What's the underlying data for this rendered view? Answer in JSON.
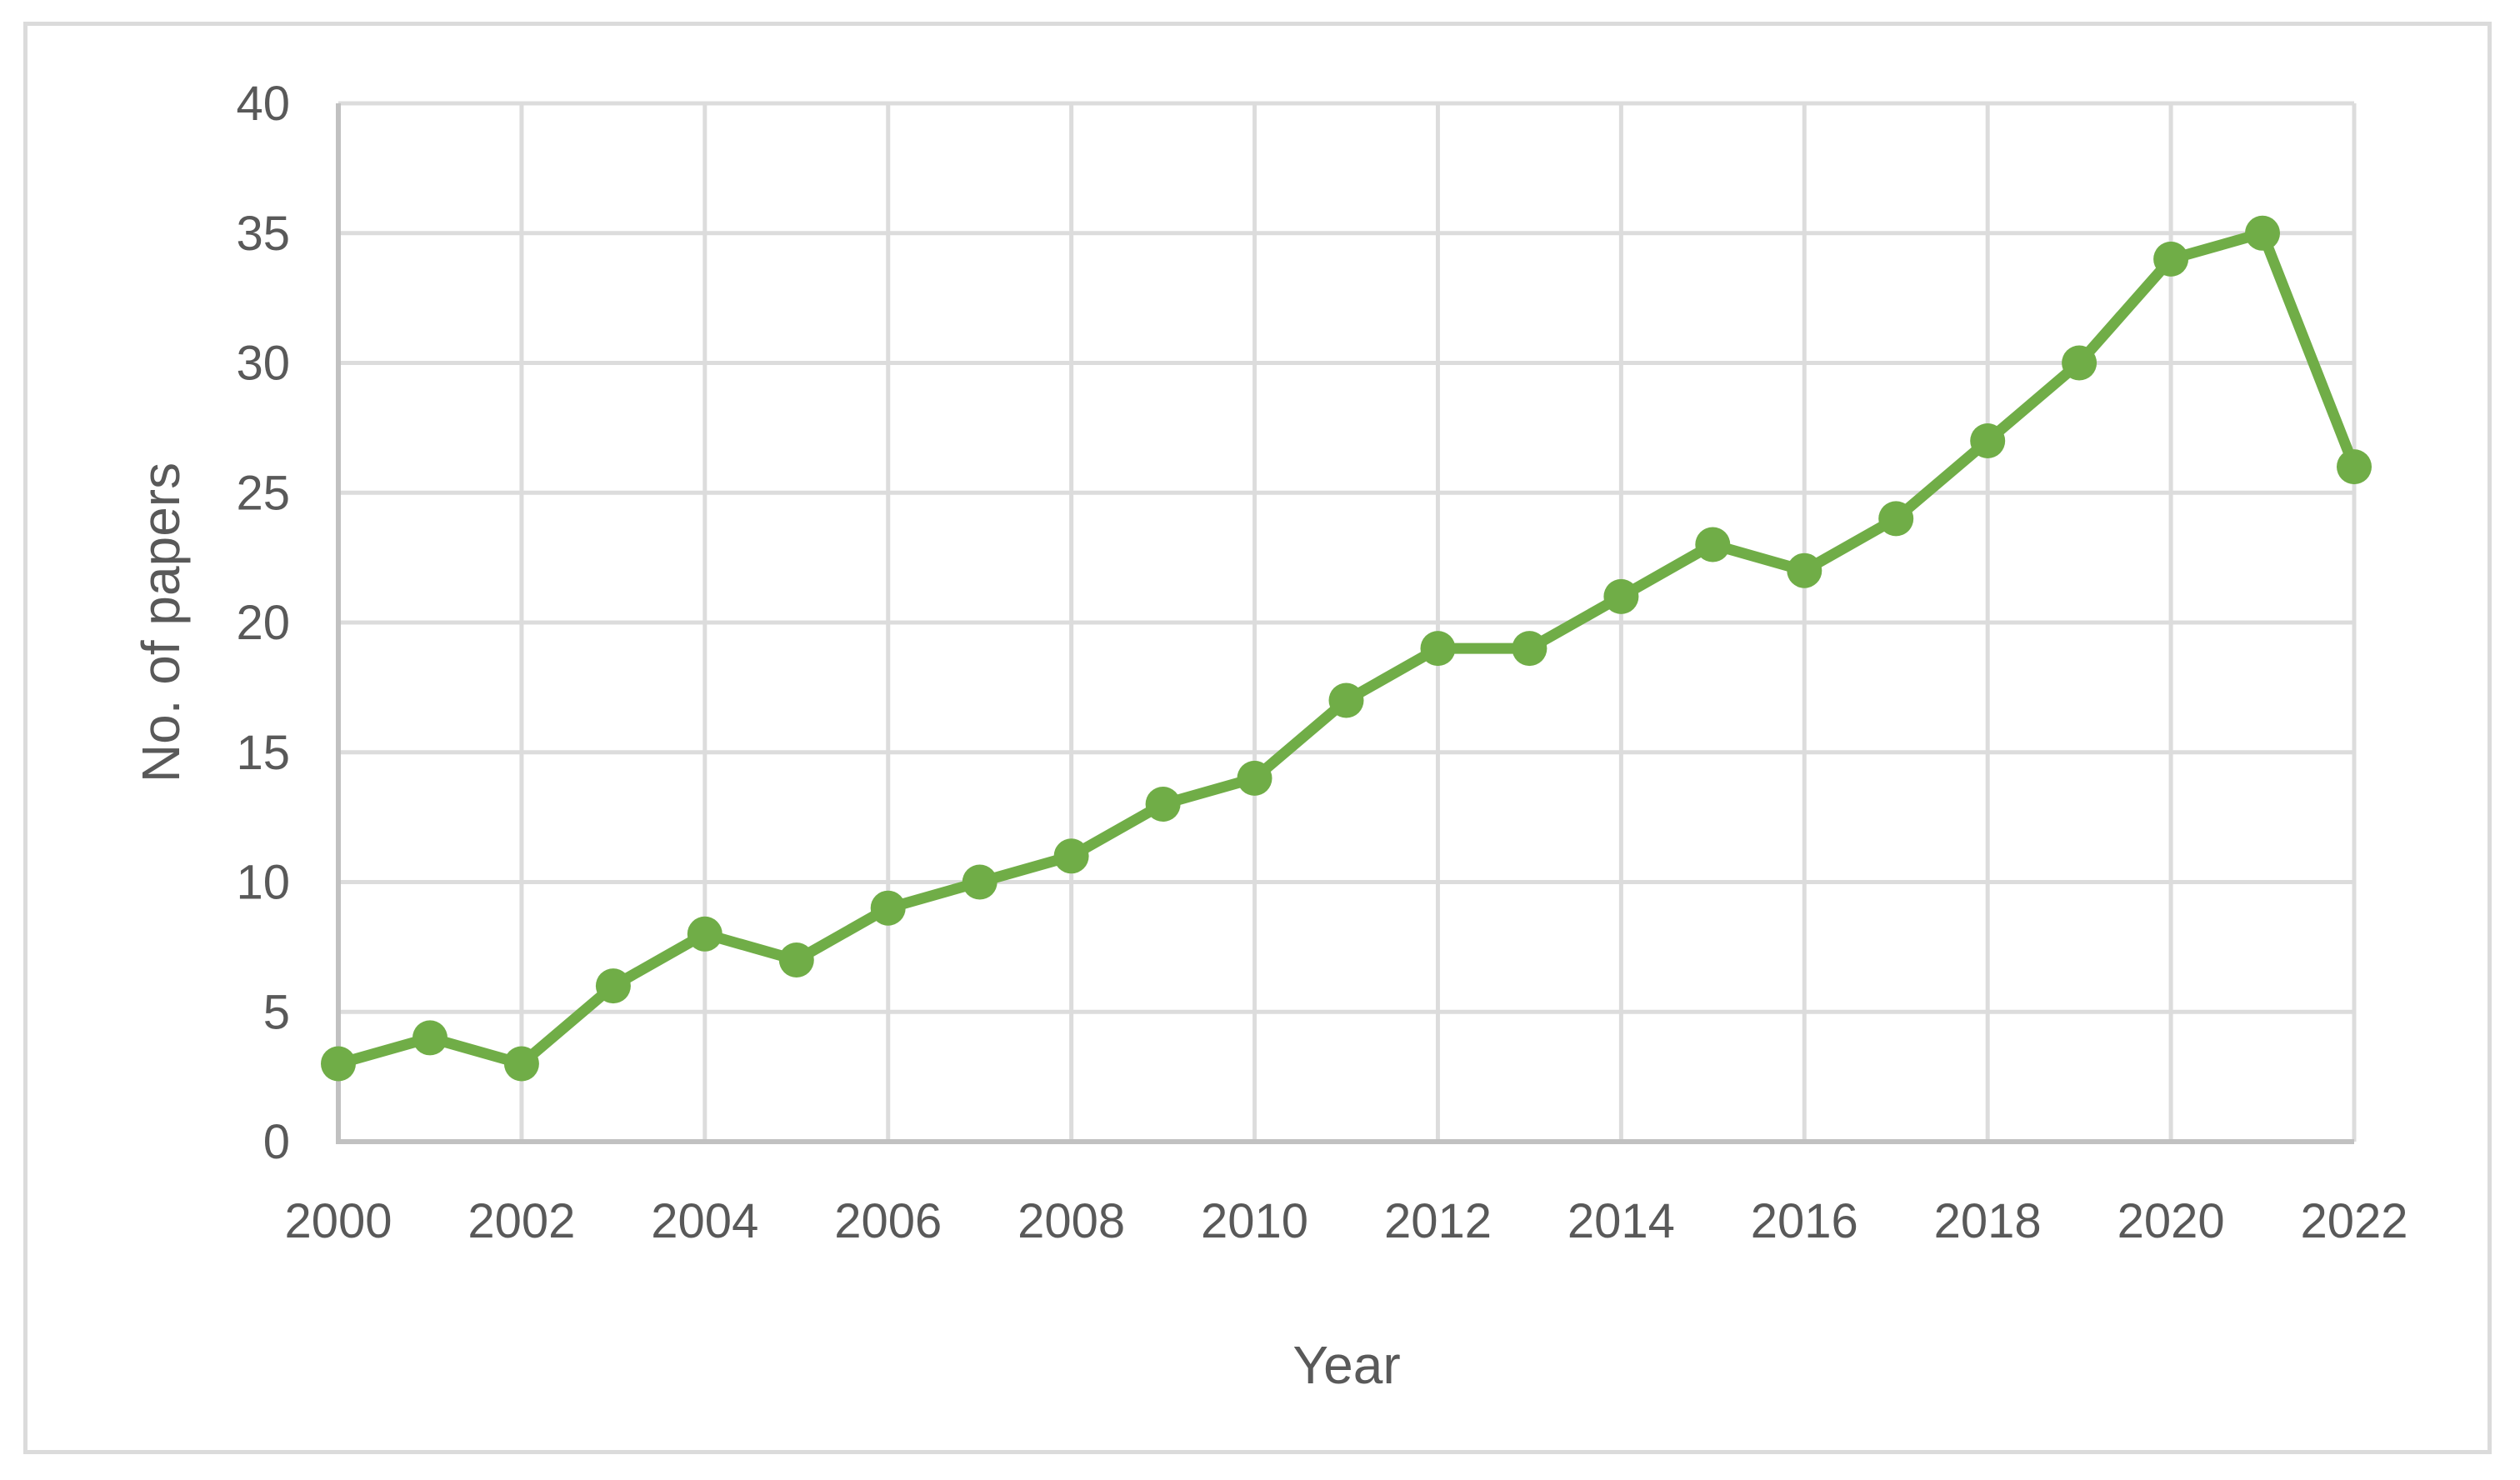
{
  "figure": {
    "background": "#FFFFFF",
    "border_color": "#DBDBDB"
  },
  "chart_data": {
    "type": "line",
    "title": "",
    "xlabel": "Year",
    "ylabel": "No. of papers",
    "x": [
      2000,
      2001,
      2002,
      2003,
      2004,
      2005,
      2006,
      2007,
      2008,
      2009,
      2010,
      2011,
      2012,
      2013,
      2014,
      2015,
      2016,
      2017,
      2018,
      2019,
      2020,
      2021,
      2022
    ],
    "series": [
      {
        "name": "No. of papers",
        "color": "#70AD47",
        "marker": "circle",
        "values": [
          3,
          4,
          3,
          6,
          8,
          7,
          9,
          10,
          11,
          13,
          14,
          17,
          19,
          19,
          21,
          23,
          22,
          24,
          27,
          30,
          34,
          35,
          26
        ]
      }
    ],
    "xticks": [
      2000,
      2002,
      2004,
      2006,
      2008,
      2010,
      2012,
      2014,
      2016,
      2018,
      2020,
      2022
    ],
    "yticks": [
      0,
      5,
      10,
      15,
      20,
      25,
      30,
      35,
      40
    ],
    "xlim": [
      2000,
      2022
    ],
    "ylim": [
      0,
      40
    ],
    "grid": true,
    "legend": "none",
    "grid_color": "#DCDCDC",
    "axis_color": "#C1C1C1",
    "tick_label_color": "#595959",
    "axis_title_color": "#595959"
  }
}
